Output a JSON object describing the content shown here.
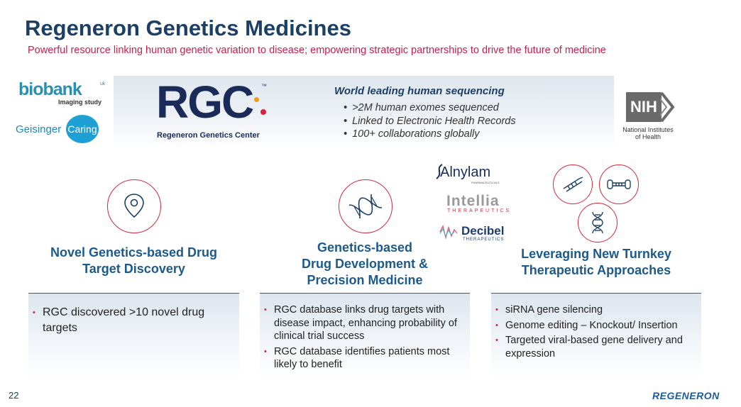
{
  "title": "Regeneron Genetics Medicines",
  "subtitle": "Powerful resource linking human genetic variation to disease; empowering strategic partnerships to drive the future of medicine",
  "banner": {
    "logos_left": {
      "biobank": {
        "word": "biobank",
        "superscript": "uk",
        "sub": "Imaging study"
      },
      "geisinger": {
        "word": "Geisinger",
        "badge": "Caring"
      }
    },
    "rgc": {
      "letters": "RGC",
      "tm": "™",
      "caption": "Regeneron Genetics Center"
    },
    "world_leading": {
      "heading": "World leading human sequencing",
      "items": [
        ">2M human exomes sequenced",
        "Linked to Electronic Health Records",
        "100+ collaborations globally"
      ]
    },
    "nih": {
      "mark": "NIH",
      "caption_line1": "National Institutes",
      "caption_line2": "of Health"
    }
  },
  "columns": [
    {
      "title_line1": "Novel Genetics-based Drug",
      "title_line2": "Target Discovery",
      "icon": "location-pin-icon",
      "bullets": [
        "RGC discovered >10 novel drug targets"
      ]
    },
    {
      "title_line1": "Genetics-based",
      "title_line2": "Drug Development &",
      "title_line3": "Precision Medicine",
      "icon": "dna-icon",
      "bullets": [
        "RGC database links drug targets with disease impact, enhancing probability of clinical trial success",
        "RGC database identifies patients most likely to benefit"
      ]
    },
    {
      "title_line1": "Leveraging New Turnkey",
      "title_line2": "Therapeutic Approaches",
      "icon": "therapeutic-approaches-icons",
      "bullets": [
        "siRNA gene silencing",
        "Genome editing – Knockout/ Insertion",
        "Targeted viral-based gene delivery and expression"
      ]
    }
  ],
  "partners": {
    "alnylam": {
      "word": "Alnylam",
      "sub": "PHARMACEUTICALS"
    },
    "intellia": {
      "word": "Intellia",
      "sub": "THERAPEUTICS"
    },
    "decibel": {
      "word": "Decibel",
      "sub": "THERAPEUTICS"
    }
  },
  "footer": {
    "page_number": "22",
    "logo": "REGENERON"
  },
  "colors": {
    "title": "#1c3f66",
    "accent_red": "#d01c4a",
    "column_title": "#1c5a8c",
    "banner": "#dfe6ee"
  }
}
